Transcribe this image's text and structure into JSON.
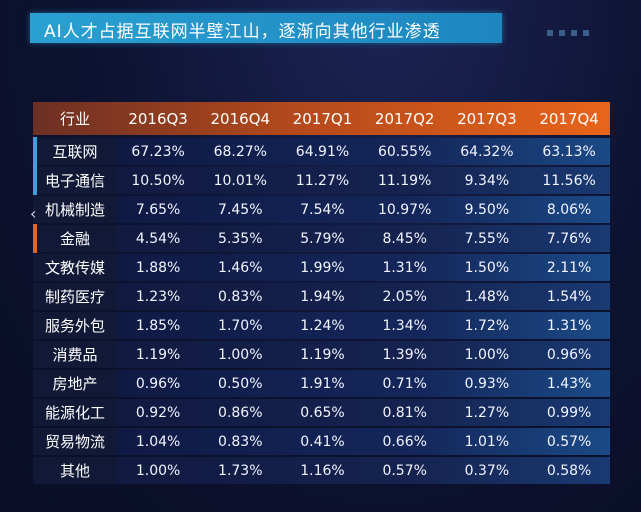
{
  "title": "AI人才占据互联网半壁江山，逐渐向其他行业渗透",
  "colors": {
    "background": "#0d1230",
    "title_bar": "#2aa0d2",
    "header_start": "#6c2f24",
    "header_end": "#e8641a",
    "row_blue": "#1b4a86",
    "accent_blue": "#3aa0e0",
    "accent_orange": "#e8641a"
  },
  "icons": {
    "prev": "chevron-left-icon",
    "decor": "dots-decoration"
  },
  "chart_data": {
    "type": "table",
    "header_label": "行业",
    "columns": [
      "2016Q3",
      "2016Q4",
      "2017Q1",
      "2017Q2",
      "2017Q3",
      "2017Q4"
    ],
    "rows": [
      {
        "industry": "互联网",
        "values": [
          "67.23%",
          "68.27%",
          "64.91%",
          "60.55%",
          "64.32%",
          "63.13%"
        ]
      },
      {
        "industry": "电子通信",
        "values": [
          "10.50%",
          "10.01%",
          "11.27%",
          "11.19%",
          "9.34%",
          "11.56%"
        ]
      },
      {
        "industry": "机械制造",
        "values": [
          "7.65%",
          "7.45%",
          "7.54%",
          "10.97%",
          "9.50%",
          "8.06%"
        ]
      },
      {
        "industry": "金融",
        "values": [
          "4.54%",
          "5.35%",
          "5.79%",
          "8.45%",
          "7.55%",
          "7.76%"
        ]
      },
      {
        "industry": "文教传媒",
        "values": [
          "1.88%",
          "1.46%",
          "1.99%",
          "1.31%",
          "1.50%",
          "2.11%"
        ]
      },
      {
        "industry": "制药医疗",
        "values": [
          "1.23%",
          "0.83%",
          "1.94%",
          "2.05%",
          "1.48%",
          "1.54%"
        ]
      },
      {
        "industry": "服务外包",
        "values": [
          "1.85%",
          "1.70%",
          "1.24%",
          "1.34%",
          "1.72%",
          "1.31%"
        ]
      },
      {
        "industry": "消费品",
        "values": [
          "1.19%",
          "1.00%",
          "1.19%",
          "1.39%",
          "1.00%",
          "0.96%"
        ]
      },
      {
        "industry": "房地产",
        "values": [
          "0.96%",
          "0.50%",
          "1.91%",
          "0.71%",
          "0.93%",
          "1.43%"
        ]
      },
      {
        "industry": "能源化工",
        "values": [
          "0.92%",
          "0.86%",
          "0.65%",
          "0.81%",
          "1.27%",
          "0.99%"
        ]
      },
      {
        "industry": "贸易物流",
        "values": [
          "1.04%",
          "0.83%",
          "0.41%",
          "0.66%",
          "1.01%",
          "0.57%"
        ]
      },
      {
        "industry": "其他",
        "values": [
          "1.00%",
          "1.73%",
          "1.16%",
          "0.57%",
          "0.37%",
          "0.58%"
        ]
      }
    ]
  }
}
